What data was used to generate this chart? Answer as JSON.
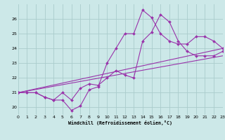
{
  "xlabel": "Windchill (Refroidissement éolien,°C)",
  "bg_color": "#cce8e8",
  "line_color": "#9933aa",
  "grid_color": "#aacccc",
  "xlim": [
    0,
    23
  ],
  "ylim": [
    19.5,
    27.0
  ],
  "xticks": [
    0,
    1,
    2,
    3,
    4,
    5,
    6,
    7,
    8,
    9,
    10,
    11,
    12,
    13,
    14,
    15,
    16,
    17,
    18,
    19,
    20,
    21,
    22,
    23
  ],
  "yticks": [
    20,
    21,
    22,
    23,
    24,
    25,
    26
  ],
  "series": [
    {
      "x": [
        0,
        1,
        2,
        3,
        4,
        5,
        6,
        7,
        8,
        9,
        10,
        11,
        12,
        13,
        14,
        15,
        16,
        17,
        18,
        19,
        20,
        21,
        22,
        23
      ],
      "y": [
        21.0,
        21.0,
        21.0,
        20.7,
        20.5,
        20.5,
        19.8,
        20.1,
        21.2,
        21.4,
        23.0,
        24.0,
        25.0,
        25.0,
        26.6,
        26.1,
        25.0,
        24.5,
        24.3,
        24.3,
        24.8,
        24.8,
        24.5,
        24.0
      ],
      "marker": true
    },
    {
      "x": [
        0,
        1,
        2,
        3,
        4,
        5,
        6,
        7,
        8,
        9,
        10,
        11,
        12,
        13,
        14,
        15,
        16,
        17,
        18,
        19,
        20,
        21,
        22,
        23
      ],
      "y": [
        21.0,
        21.0,
        21.0,
        20.7,
        20.5,
        21.0,
        20.5,
        21.3,
        21.6,
        21.5,
        22.0,
        22.5,
        22.2,
        22.0,
        24.5,
        25.1,
        26.3,
        25.8,
        24.5,
        23.8,
        23.5,
        23.5,
        23.5,
        23.8
      ],
      "marker": true
    },
    {
      "x": [
        0,
        23
      ],
      "y": [
        21.0,
        23.5
      ],
      "marker": false
    },
    {
      "x": [
        0,
        23
      ],
      "y": [
        21.0,
        24.0
      ],
      "marker": false
    }
  ]
}
